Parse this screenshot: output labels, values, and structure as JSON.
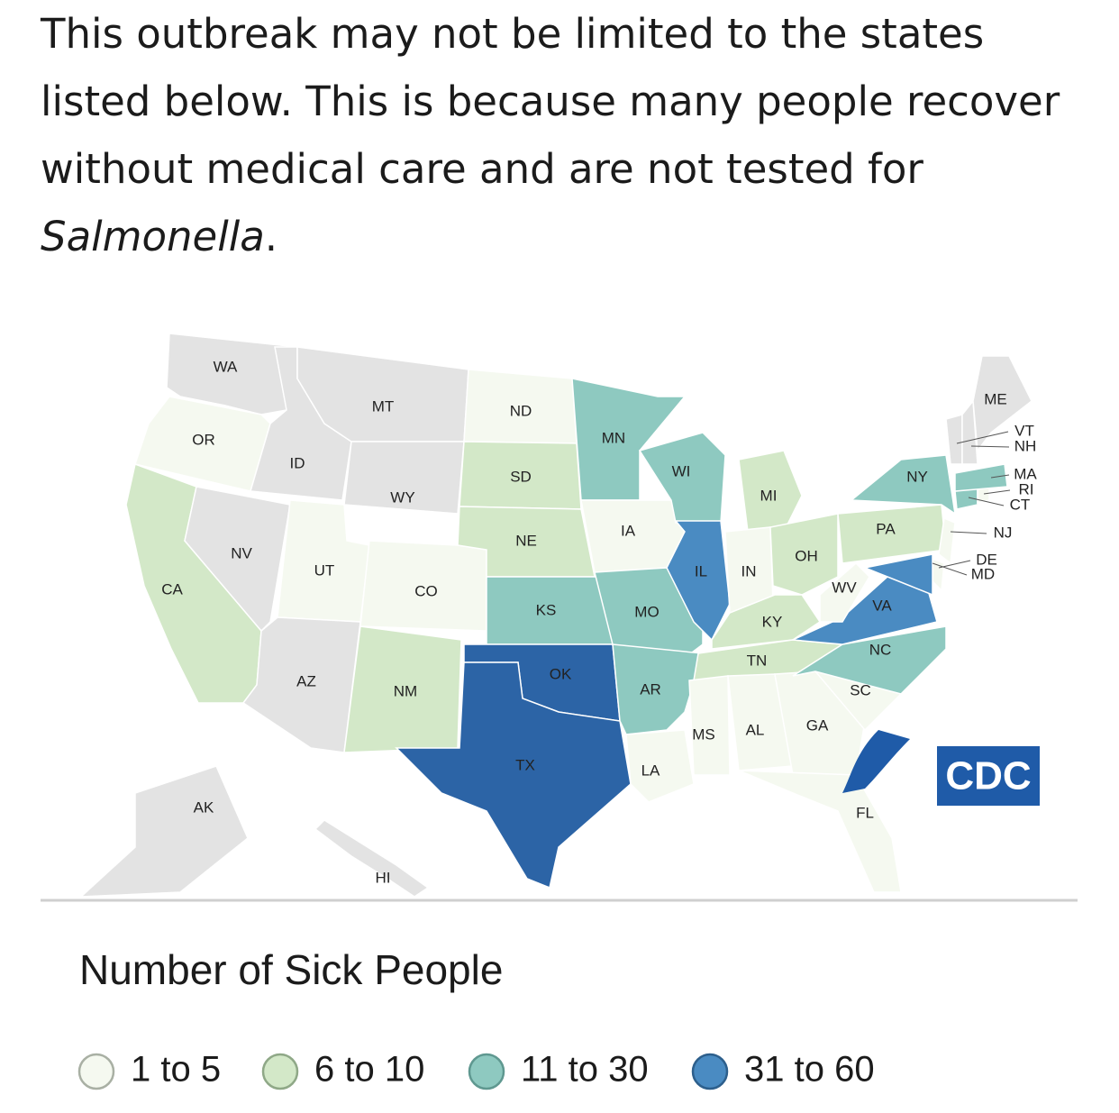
{
  "intro": {
    "text": "This outbreak may not be limited to the states listed below. This is because many people recover without medical care and are not tested for ",
    "italic": "Salmonella",
    "end": "."
  },
  "map": {
    "no_data_color": "#e3e3e3",
    "states": [
      {
        "label": "WA",
        "level": null
      },
      {
        "label": "OR",
        "level": 0
      },
      {
        "label": "CA",
        "level": 1
      },
      {
        "label": "NV",
        "level": null
      },
      {
        "label": "ID",
        "level": null
      },
      {
        "label": "MT",
        "level": null
      },
      {
        "label": "WY",
        "level": null
      },
      {
        "label": "UT",
        "level": 0
      },
      {
        "label": "CO",
        "level": 0
      },
      {
        "label": "AZ",
        "level": null
      },
      {
        "label": "NM",
        "level": 1
      },
      {
        "label": "ND",
        "level": 0
      },
      {
        "label": "SD",
        "level": 1
      },
      {
        "label": "NE",
        "level": 1
      },
      {
        "label": "KS",
        "level": 2
      },
      {
        "label": "OK",
        "level": 3,
        "color": "#2c64a6"
      },
      {
        "label": "TX",
        "level": 3,
        "color": "#2c64a6"
      },
      {
        "label": "MN",
        "level": 2
      },
      {
        "label": "IA",
        "level": 0
      },
      {
        "label": "MO",
        "level": 2
      },
      {
        "label": "AR",
        "level": 2
      },
      {
        "label": "LA",
        "level": 0
      },
      {
        "label": "WI",
        "level": 2
      },
      {
        "label": "IL",
        "level": 3
      },
      {
        "label": "MI",
        "level": 1
      },
      {
        "label": "IN",
        "level": 0
      },
      {
        "label": "OH",
        "level": 1
      },
      {
        "label": "KY",
        "level": 1
      },
      {
        "label": "TN",
        "level": 1
      },
      {
        "label": "MS",
        "level": 0
      },
      {
        "label": "AL",
        "level": 0
      },
      {
        "label": "GA",
        "level": 0
      },
      {
        "label": "FL",
        "level": 0
      },
      {
        "label": "SC",
        "level": 0
      },
      {
        "label": "NC",
        "level": 2
      },
      {
        "label": "VA",
        "level": 3
      },
      {
        "label": "WV",
        "level": 0
      },
      {
        "label": "PA",
        "level": 1
      },
      {
        "label": "NY",
        "level": 2
      },
      {
        "label": "NJ",
        "level": 0
      },
      {
        "label": "DE",
        "level": 0
      },
      {
        "label": "MD",
        "level": 3
      },
      {
        "label": "CT",
        "level": 2
      },
      {
        "label": "RI",
        "level": 0
      },
      {
        "label": "MA",
        "level": 2
      },
      {
        "label": "VT",
        "level": null
      },
      {
        "label": "NH",
        "level": null
      },
      {
        "label": "ME",
        "level": null
      },
      {
        "label": "AK",
        "level": null
      },
      {
        "label": "HI",
        "level": null
      }
    ],
    "logo_text": "CDC"
  },
  "legend": {
    "title": "Number of Sick People",
    "items": [
      {
        "label": "1 to 5",
        "color": "#f5f9f0",
        "stroke": "#a9b0a4"
      },
      {
        "label": "6 to 10",
        "color": "#d3e8c8",
        "stroke": "#8fa887"
      },
      {
        "label": "11 to 30",
        "color": "#8ec9c0",
        "stroke": "#5f9890"
      },
      {
        "label": "31 to 60",
        "color": "#4a8bc2",
        "stroke": "#2d5f8c"
      }
    ]
  }
}
